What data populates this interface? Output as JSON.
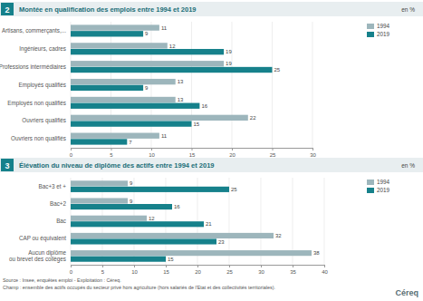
{
  "chart_data": [
    {
      "type": "bar",
      "orientation": "horizontal",
      "number": "2",
      "title": "Montée en qualification des emplois entre 1994 et 2019",
      "unit": "en %",
      "categories": [
        "Artisans, commerçants,...",
        "Ingénieurs, cadres",
        "Professions intermédiaires",
        "Employés qualifiés",
        "Employés non qualifiés",
        "Ouvriers qualifiés",
        "Ouvriers non qualifiés"
      ],
      "series": [
        {
          "name": "1994",
          "color": "#9db6bc",
          "values": [
            11,
            12,
            19,
            13,
            13,
            22,
            11
          ]
        },
        {
          "name": "2019",
          "color": "#16818b",
          "values": [
            9,
            19,
            25,
            9,
            16,
            15,
            7
          ]
        }
      ],
      "xlim": [
        0,
        30
      ],
      "xticks": [
        0,
        5,
        10,
        15,
        20,
        25,
        30
      ],
      "grid": true,
      "data_labels": true,
      "legend": "top-right"
    },
    {
      "type": "bar",
      "orientation": "horizontal",
      "number": "3",
      "title": "Élévation du niveau de diplôme des actifs entre 1994 et 2019",
      "unit": "en %",
      "categories": [
        "Bac+3 et +",
        "Bac+2",
        "Bac",
        "CAP ou équivalent",
        "Aucun diplôme ou brevet des collèges"
      ],
      "series": [
        {
          "name": "1994",
          "color": "#9db6bc",
          "values": [
            9,
            9,
            12,
            32,
            38
          ]
        },
        {
          "name": "2019",
          "color": "#16818b",
          "values": [
            25,
            16,
            21,
            23,
            15
          ]
        }
      ],
      "xlim": [
        0,
        40
      ],
      "xticks": [
        0,
        5,
        10,
        15,
        20,
        25,
        30,
        35,
        40
      ],
      "grid": true,
      "data_labels": true,
      "legend": "top-right"
    }
  ],
  "source": "Source : Insee, enquêtes emploi - Exploitation : Céreq.",
  "scope": "Champ : ensemble des actifs occupés du secteur privé hors agriculture (hors salariés de l'Etat et des collectivités territoriales).",
  "logo": "Céreq"
}
